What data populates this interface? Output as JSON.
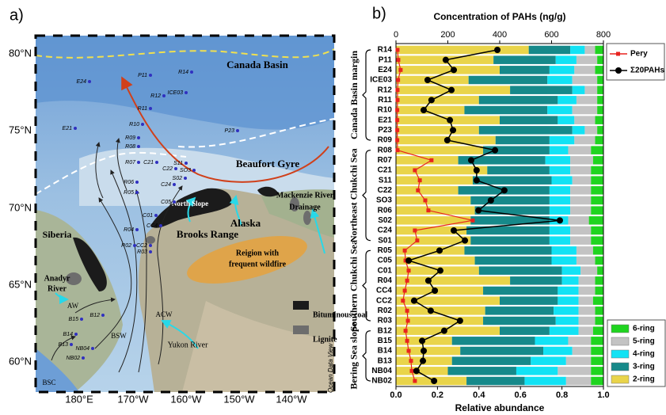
{
  "map": {
    "panel": "a)",
    "lat_labels": [
      "80°N",
      "75°N",
      "70°N",
      "65°N",
      "60°N"
    ],
    "lon_labels": [
      "180°E",
      "170°W",
      "160°W",
      "150°W",
      "140°W"
    ],
    "regions": [
      "Canada Basin",
      "Beaufort Gyre",
      "Mackenzie River",
      "Drainage",
      "North Slope",
      "Brooks Range",
      "Alaska",
      "Siberia",
      "Anadyr",
      "River",
      "Reigion with",
      "frequent wildfire",
      "Yukon River",
      "AW",
      "BSW",
      "ACW",
      "BSC"
    ],
    "stations": [
      "E24",
      "P11",
      "R14",
      "R12",
      "ICE03",
      "R11",
      "R10",
      "E21",
      "P23",
      "R09",
      "R08",
      "R07",
      "C21",
      "S11",
      "C22",
      "SO3",
      "R06",
      "S02",
      "C24",
      "R05",
      "C05",
      "C01",
      "R04",
      "CC4",
      "R02",
      "CC2",
      "R03",
      "B12",
      "B15",
      "B14",
      "B13",
      "NB04",
      "NB02"
    ],
    "legend": [
      "Bituminous coal",
      "Lignite"
    ],
    "credit": "Ocean Data View"
  },
  "chart_data": {
    "type": "bar",
    "orientation": "horizontal",
    "stacked": true,
    "panel": "b)",
    "title": "Concentration of PAHs (ng/g)",
    "xlabel": "Relative abundance",
    "categories": [
      "R14",
      "P11",
      "E24",
      "ICE03",
      "R12",
      "R11",
      "R10",
      "E21",
      "P23",
      "R09",
      "R08",
      "R07",
      "C21",
      "S11",
      "C22",
      "SO3",
      "R06",
      "S02",
      "C24",
      "S01",
      "R05",
      "C05",
      "C01",
      "R04",
      "CC4",
      "CC2",
      "R02",
      "R03",
      "B12",
      "B15",
      "B14",
      "B13",
      "NB04",
      "NB02"
    ],
    "groups": [
      "Canada Basin margin",
      "Northeast Chukchi Sea",
      "Southern Chukchi Sea",
      "Bering Sea slope"
    ],
    "xlim": [
      0,
      1
    ],
    "xticks": [
      {
        "value": 0,
        "label": "0.0"
      },
      {
        "value": 0.2,
        "label": "0.2"
      },
      {
        "value": 0.4,
        "label": "0.4"
      },
      {
        "value": 0.6,
        "label": "0.6"
      },
      {
        "value": 0.8,
        "label": "0.8"
      },
      {
        "value": 1,
        "label": "1.0"
      }
    ],
    "x2lim": [
      0,
      800
    ],
    "x2ticks": [
      0,
      200,
      400,
      600,
      800
    ],
    "series": [
      {
        "name": "2-ring",
        "color": "#e9d44a",
        "values": [
          0.64,
          0.47,
          0.5,
          0.35,
          0.55,
          0.4,
          0.33,
          0.5,
          0.4,
          0.48,
          0.42,
          0.3,
          0.44,
          0.37,
          0.3,
          0.36,
          0.38,
          0.36,
          0.34,
          0.36,
          0.33,
          0.38,
          0.4,
          0.55,
          0.42,
          0.5,
          0.43,
          0.42,
          0.5,
          0.27,
          0.31,
          0.27,
          0.25,
          0.34
        ]
      },
      {
        "name": "3-ring",
        "color": "#16898a",
        "values": [
          0.2,
          0.3,
          0.24,
          0.38,
          0.3,
          0.38,
          0.4,
          0.28,
          0.45,
          0.26,
          0.32,
          0.42,
          0.3,
          0.38,
          0.44,
          0.38,
          0.36,
          0.38,
          0.4,
          0.38,
          0.42,
          0.37,
          0.4,
          0.25,
          0.36,
          0.28,
          0.33,
          0.35,
          0.24,
          0.4,
          0.4,
          0.38,
          0.33,
          0.28
        ]
      },
      {
        "name": "4-ring",
        "color": "#12e2f4",
        "values": [
          0.07,
          0.1,
          0.12,
          0.12,
          0.06,
          0.09,
          0.12,
          0.08,
          0.06,
          0.12,
          0.09,
          0.12,
          0.1,
          0.1,
          0.1,
          0.1,
          0.1,
          0.09,
          0.1,
          0.1,
          0.12,
          0.12,
          0.09,
          0.08,
          0.1,
          0.1,
          0.12,
          0.11,
          0.14,
          0.16,
          0.14,
          0.17,
          0.2,
          0.2
        ]
      },
      {
        "name": "5-ring",
        "color": "#c3c3c3",
        "values": [
          0.05,
          0.1,
          0.1,
          0.12,
          0.06,
          0.1,
          0.12,
          0.1,
          0.06,
          0.1,
          0.11,
          0.11,
          0.1,
          0.09,
          0.1,
          0.1,
          0.1,
          0.1,
          0.1,
          0.1,
          0.08,
          0.09,
          0.08,
          0.08,
          0.08,
          0.07,
          0.08,
          0.08,
          0.07,
          0.11,
          0.09,
          0.12,
          0.16,
          0.12
        ]
      },
      {
        "name": "6-ring",
        "color": "#1fd41f",
        "values": [
          0.04,
          0.03,
          0.04,
          0.03,
          0.03,
          0.03,
          0.03,
          0.04,
          0.03,
          0.04,
          0.06,
          0.05,
          0.06,
          0.06,
          0.06,
          0.06,
          0.06,
          0.07,
          0.06,
          0.06,
          0.05,
          0.04,
          0.03,
          0.04,
          0.04,
          0.05,
          0.04,
          0.04,
          0.05,
          0.06,
          0.06,
          0.06,
          0.06,
          0.06
        ]
      },
      {
        "name": "Pery",
        "type": "line",
        "axis": "x2",
        "color": "#e8231f",
        "marker": "square",
        "values": [
          6,
          9,
          18,
          8,
          6,
          6,
          5,
          5,
          5,
          5,
          6,
          137,
          73,
          92,
          85,
          113,
          125,
          296,
          73,
          82,
          34,
          37,
          49,
          43,
          34,
          27,
          43,
          46,
          37,
          43,
          49,
          58,
          61,
          73
        ]
      },
      {
        "name": "Σ20PAHs",
        "type": "line",
        "axis": "x2",
        "color": "#000000",
        "marker": "circle",
        "values": [
          391,
          192,
          223,
          122,
          214,
          137,
          107,
          208,
          220,
          198,
          382,
          290,
          311,
          311,
          418,
          366,
          318,
          632,
          223,
          266,
          168,
          49,
          171,
          125,
          150,
          70,
          134,
          247,
          186,
          101,
          107,
          104,
          79,
          147
        ]
      }
    ]
  }
}
